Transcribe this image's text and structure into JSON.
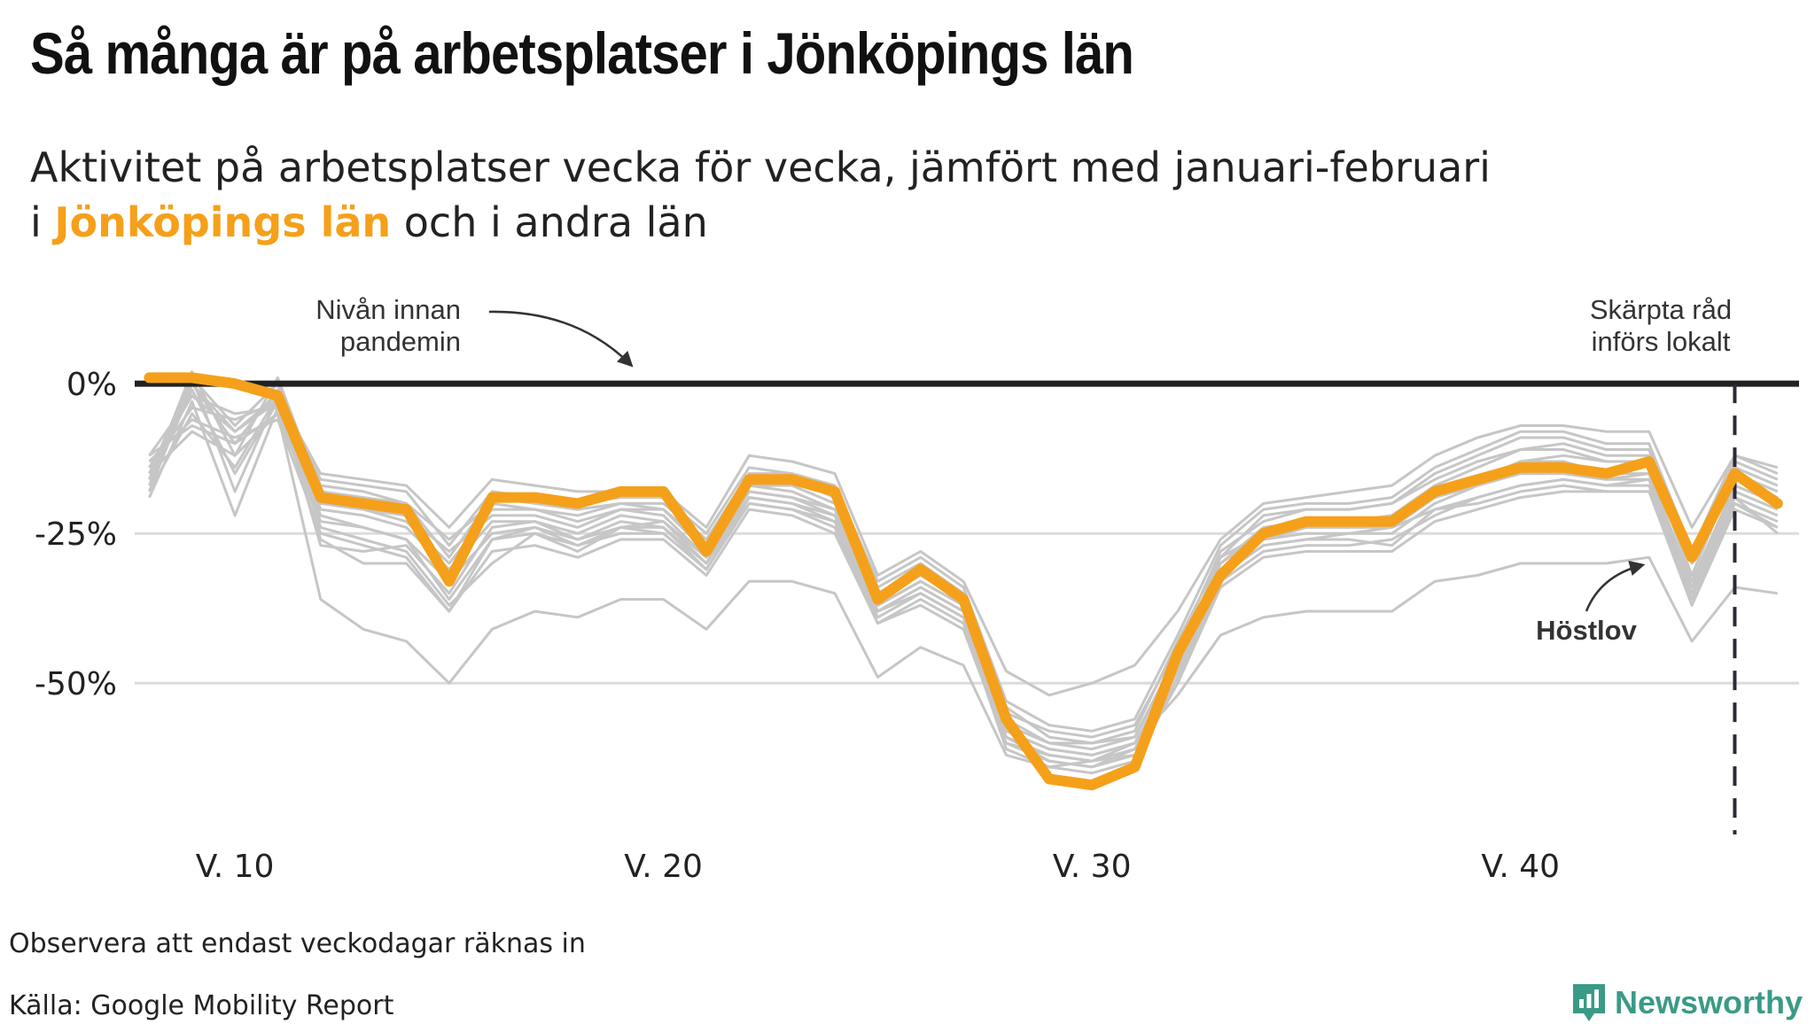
{
  "header": {
    "title": "Så många är på arbetsplatser i Jönköpings län",
    "subtitle_line1": "Aktivitet på arbetsplatser vecka för vecka, jämfört med januari-februari",
    "subtitle_line2_prefix": "i ",
    "subtitle_highlight": "Jönköpings län",
    "subtitle_line2_suffix": " och i andra län"
  },
  "annotations": {
    "baseline_line1": "Nivån innan",
    "baseline_line2": "pandemin",
    "measures_line1": "Skärpta råd",
    "measures_line2": "införs lokalt",
    "hostlov": "Höstlov"
  },
  "footer": {
    "note": "Observera att endast veckodagar räknas in",
    "source": "Källa: Google Mobility Report",
    "brand": "Newsworthy"
  },
  "colors": {
    "highlight": "#f5a01a",
    "other_counties": "#c6c6c6",
    "baseline": "#222222",
    "grid": "#dcdcdc",
    "marker": "#2a2a3a",
    "brand": "#3a9a87"
  },
  "chart_data": {
    "type": "line",
    "x_label_prefix": "V. ",
    "x": [
      8,
      9,
      10,
      11,
      12,
      13,
      14,
      15,
      16,
      17,
      18,
      19,
      20,
      21,
      22,
      23,
      24,
      25,
      26,
      27,
      28,
      29,
      30,
      31,
      32,
      33,
      34,
      35,
      36,
      37,
      38,
      39,
      40,
      41,
      42,
      43,
      44,
      45,
      46
    ],
    "xlim": [
      7,
      46.5
    ],
    "x_ticks": [
      10,
      20,
      30,
      40
    ],
    "y_ticks": [
      0,
      -25,
      -50
    ],
    "y_tick_labels": [
      "0%",
      "-25%",
      "-50%"
    ],
    "ylim": [
      -72,
      12
    ],
    "baseline": 0,
    "vline_week": 45,
    "highlight_series": {
      "name": "Jönköpings län",
      "values": [
        1,
        1,
        0,
        -2,
        -19,
        -20,
        -21,
        -33,
        -19,
        -19,
        -20,
        -18,
        -18,
        -28,
        -16,
        -16,
        -18,
        -36,
        -31,
        -36,
        -56,
        -66,
        -67,
        -64,
        -45,
        -32,
        -25,
        -23,
        -23,
        -23,
        -18,
        -16,
        -14,
        -14,
        -15,
        -13,
        -29,
        -15,
        -20
      ]
    },
    "other_series": [
      [
        -12,
        -2,
        -8,
        -2,
        -15,
        -16,
        -17,
        -24,
        -16,
        -17,
        -18,
        -18,
        -18,
        -24,
        -12,
        -13,
        -15,
        -32,
        -28,
        -33,
        -48,
        -52,
        -50,
        -47,
        -38,
        -26,
        -20,
        -19,
        -18,
        -17,
        -12,
        -9,
        -7,
        -7,
        -8,
        -8,
        -24,
        -12,
        -14
      ],
      [
        -16,
        2,
        -12,
        1,
        -18,
        -19,
        -20,
        -26,
        -20,
        -21,
        -22,
        -20,
        -21,
        -27,
        -15,
        -16,
        -19,
        -35,
        -31,
        -35,
        -55,
        -58,
        -59,
        -57,
        -44,
        -28,
        -23,
        -21,
        -21,
        -20,
        -15,
        -12,
        -9,
        -9,
        -11,
        -11,
        -30,
        -13,
        -16
      ],
      [
        -14,
        -4,
        -6,
        -3,
        -20,
        -21,
        -22,
        -28,
        -22,
        -22,
        -24,
        -21,
        -22,
        -29,
        -17,
        -18,
        -21,
        -37,
        -33,
        -37,
        -58,
        -61,
        -62,
        -60,
        -47,
        -30,
        -24,
        -23,
        -23,
        -22,
        -17,
        -14,
        -11,
        -11,
        -13,
        -13,
        -32,
        -15,
        -18
      ],
      [
        -18,
        0,
        -10,
        -1,
        -21,
        -22,
        -24,
        -31,
        -23,
        -23,
        -25,
        -22,
        -23,
        -30,
        -18,
        -19,
        -22,
        -38,
        -34,
        -38,
        -59,
        -62,
        -63,
        -61,
        -48,
        -31,
        -26,
        -24,
        -24,
        -24,
        -19,
        -16,
        -13,
        -13,
        -15,
        -15,
        -33,
        -17,
        -20
      ],
      [
        -15,
        -8,
        -12,
        -5,
        -23,
        -24,
        -26,
        -33,
        -25,
        -24,
        -26,
        -23,
        -24,
        -31,
        -19,
        -20,
        -23,
        -39,
        -35,
        -39,
        -60,
        -63,
        -64,
        -62,
        -49,
        -32,
        -27,
        -26,
        -25,
        -25,
        -20,
        -17,
        -15,
        -15,
        -16,
        -16,
        -35,
        -19,
        -22
      ],
      [
        -17,
        1,
        -18,
        -2,
        -16,
        -17,
        -18,
        -27,
        -18,
        -19,
        -20,
        -19,
        -19,
        -25,
        -14,
        -15,
        -17,
        -33,
        -29,
        -34,
        -53,
        -57,
        -58,
        -56,
        -42,
        -27,
        -21,
        -20,
        -20,
        -19,
        -14,
        -11,
        -8,
        -8,
        -10,
        -10,
        -28,
        -12,
        -15
      ],
      [
        -19,
        -3,
        -22,
        -4,
        -22,
        -24,
        -26,
        -36,
        -26,
        -25,
        -27,
        -24,
        -25,
        -31,
        -20,
        -21,
        -24,
        -40,
        -36,
        -40,
        -61,
        -64,
        -65,
        -63,
        -50,
        -33,
        -28,
        -27,
        -27,
        -26,
        -22,
        -19,
        -17,
        -16,
        -17,
        -17,
        -36,
        -20,
        -23
      ],
      [
        -13,
        -6,
        -9,
        -6,
        -25,
        -27,
        -29,
        -38,
        -28,
        -27,
        -29,
        -26,
        -26,
        -32,
        -21,
        -22,
        -25,
        -40,
        -37,
        -41,
        -60,
        -62,
        -63,
        -62,
        -50,
        -34,
        -29,
        -28,
        -28,
        -28,
        -23,
        -21,
        -19,
        -18,
        -18,
        -18,
        -37,
        -21,
        -24
      ],
      [
        -16,
        0,
        -8,
        -3,
        -26,
        -30,
        -30,
        -38,
        -26,
        -24,
        -27,
        -25,
        -25,
        -31,
        -20,
        -21,
        -23,
        -38,
        -34,
        -38,
        -58,
        -61,
        -62,
        -60,
        -48,
        -31,
        -26,
        -25,
        -25,
        -24,
        -21,
        -19,
        -17,
        -16,
        -17,
        -16,
        -34,
        -20,
        -24
      ],
      [
        -14,
        -2,
        -5,
        -4,
        -19,
        -21,
        -23,
        -30,
        -21,
        -21,
        -23,
        -21,
        -21,
        -28,
        -17,
        -17,
        -20,
        -36,
        -32,
        -36,
        -56,
        -60,
        -60,
        -59,
        -45,
        -30,
        -25,
        -23,
        -23,
        -22,
        -18,
        -16,
        -13,
        -12,
        -13,
        -13,
        -30,
        -16,
        -19
      ],
      [
        -18,
        -5,
        -14,
        -2,
        -27,
        -28,
        -27,
        -35,
        -24,
        -23,
        -26,
        -24,
        -24,
        -30,
        -19,
        -20,
        -22,
        -38,
        -35,
        -39,
        -59,
        -63,
        -64,
        -61,
        -48,
        -32,
        -27,
        -26,
        -26,
        -27,
        -21,
        -20,
        -18,
        -17,
        -18,
        -18,
        -34,
        -19,
        -25
      ],
      [
        -12,
        -7,
        -10,
        -5,
        -36,
        -41,
        -43,
        -50,
        -41,
        -38,
        -39,
        -36,
        -36,
        -41,
        -33,
        -33,
        -35,
        -49,
        -44,
        -47,
        -62,
        -64,
        -63,
        -60,
        -52,
        -42,
        -39,
        -38,
        -38,
        -38,
        -33,
        -32,
        -30,
        -30,
        -30,
        -29,
        -43,
        -34,
        -35
      ],
      [
        -17,
        -1,
        -15,
        -3,
        -24,
        -26,
        -28,
        -37,
        -30,
        -25,
        -28,
        -24,
        -23,
        -29,
        -18,
        -19,
        -21,
        -37,
        -33,
        -37,
        -57,
        -60,
        -61,
        -59,
        -46,
        -29,
        -25,
        -24,
        -24,
        -23,
        -19,
        -17,
        -15,
        -15,
        -16,
        -15,
        -33,
        -18,
        -21
      ],
      [
        -15,
        1,
        -7,
        0,
        -17,
        -18,
        -20,
        -29,
        -19,
        -20,
        -21,
        -20,
        -20,
        -26,
        -15,
        -15,
        -18,
        -34,
        -30,
        -35,
        -54,
        -59,
        -60,
        -58,
        -43,
        -29,
        -22,
        -21,
        -21,
        -20,
        -16,
        -13,
        -11,
        -10,
        -12,
        -12,
        -29,
        -14,
        -17
      ]
    ]
  }
}
